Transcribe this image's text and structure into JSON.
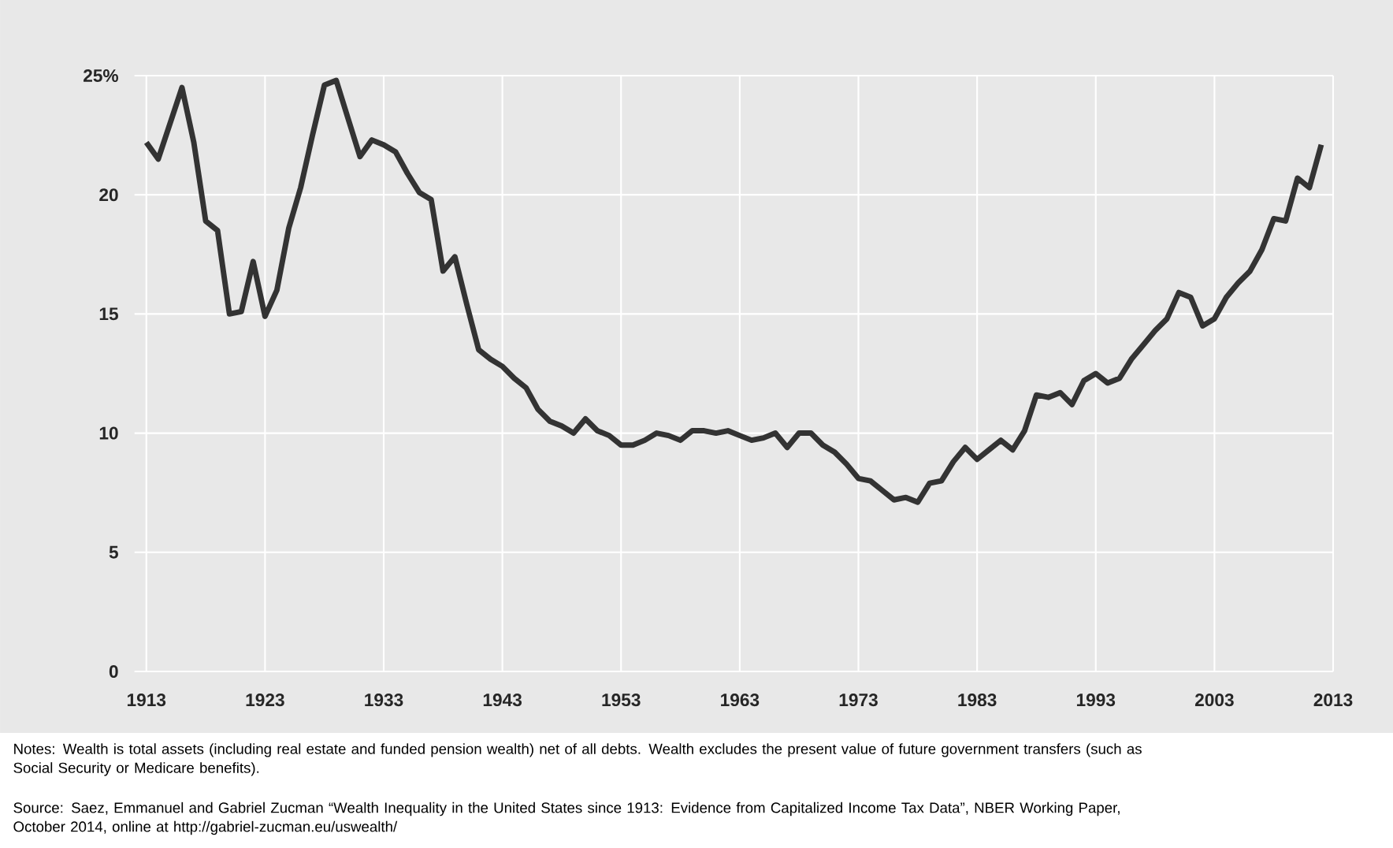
{
  "chart_data": {
    "type": "line",
    "x": [
      1913,
      1914,
      1916,
      1917,
      1918,
      1919,
      1920,
      1921,
      1922,
      1923,
      1924,
      1925,
      1926,
      1927,
      1928,
      1929,
      1930,
      1931,
      1932,
      1933,
      1934,
      1935,
      1936,
      1937,
      1938,
      1939,
      1940,
      1941,
      1942,
      1943,
      1944,
      1945,
      1946,
      1947,
      1948,
      1949,
      1950,
      1951,
      1952,
      1953,
      1954,
      1955,
      1956,
      1957,
      1958,
      1959,
      1960,
      1961,
      1962,
      1963,
      1964,
      1965,
      1966,
      1967,
      1968,
      1969,
      1970,
      1971,
      1972,
      1973,
      1974,
      1975,
      1976,
      1977,
      1978,
      1979,
      1980,
      1981,
      1982,
      1983,
      1984,
      1985,
      1986,
      1987,
      1988,
      1989,
      1990,
      1991,
      1992,
      1993,
      1994,
      1995,
      1996,
      1997,
      1998,
      1999,
      2000,
      2001,
      2002,
      2003,
      2004,
      2005,
      2006,
      2007,
      2008,
      2009,
      2010,
      2011,
      2012
    ],
    "values": [
      22.2,
      21.5,
      24.5,
      22.2,
      18.9,
      18.5,
      15.0,
      15.1,
      17.2,
      14.9,
      16.0,
      18.6,
      20.3,
      22.5,
      24.6,
      24.8,
      23.2,
      21.6,
      22.3,
      22.1,
      21.8,
      20.9,
      20.1,
      19.8,
      16.8,
      17.4,
      15.4,
      13.5,
      13.1,
      12.8,
      12.3,
      11.9,
      11.0,
      10.5,
      10.3,
      10.0,
      10.6,
      10.1,
      9.9,
      9.5,
      9.5,
      9.7,
      10.0,
      9.9,
      9.7,
      10.1,
      10.1,
      10.0,
      10.1,
      9.9,
      9.7,
      9.8,
      10.0,
      9.4,
      10.0,
      10.0,
      9.5,
      9.2,
      8.7,
      8.1,
      8.0,
      7.6,
      7.2,
      7.3,
      7.1,
      7.9,
      8.0,
      8.8,
      9.4,
      8.9,
      9.3,
      9.7,
      9.3,
      10.1,
      11.6,
      11.5,
      11.7,
      11.2,
      12.2,
      12.5,
      12.1,
      12.3,
      13.1,
      13.7,
      14.3,
      14.8,
      15.9,
      15.7,
      14.5,
      14.8,
      15.7,
      16.3,
      16.8,
      17.7,
      19.0,
      18.9,
      20.7,
      20.3,
      22.1
    ],
    "color": "#333333",
    "xlim": [
      1912,
      2013
    ],
    "xticks": [
      1913,
      1923,
      1933,
      1943,
      1953,
      1963,
      1973,
      1983,
      1993,
      2003,
      2013
    ],
    "ylim": [
      0,
      25
    ],
    "yticks": [
      0,
      5,
      10,
      15,
      20,
      {
        "value": 25,
        "label": "25%"
      }
    ],
    "grid": true,
    "marker": "none",
    "line_style": "solid",
    "annotations": [
      "Notes: Wealth is total assets (including real estate and funded pension wealth) net of all debts. Wealth excludes the present value of future government transfers (such as Social Security or Medicare benefits).",
      "Source: Saez, Emmanuel and Gabriel Zucman “Wealth Inequality in the United States since 1913: Evidence from Capitalized Income Tax Data”, NBER Working Paper, October 2014, online at http://gabriel-zucman.eu/uswealth/"
    ]
  }
}
